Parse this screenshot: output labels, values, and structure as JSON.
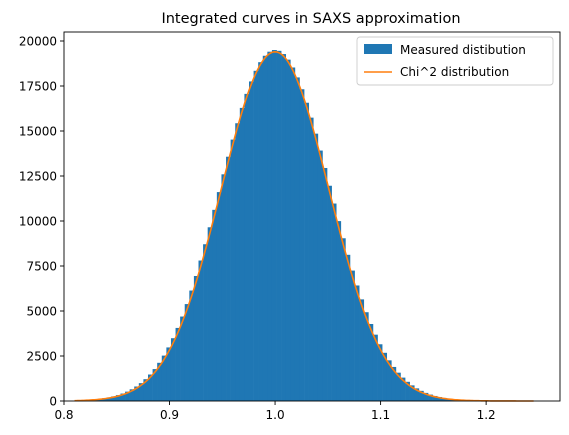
{
  "chart_data": {
    "type": "bar",
    "title": "Integrated curves in SAXS approximation",
    "xlabel": "",
    "ylabel": "",
    "xlim": [
      0.8,
      1.27
    ],
    "ylim": [
      0,
      20500
    ],
    "xticks": [
      0.8,
      0.9,
      1.0,
      1.1,
      1.2
    ],
    "xtick_labels": [
      "0.8",
      "0.9",
      "1.0",
      "1.1",
      "1.2"
    ],
    "yticks": [
      0,
      2500,
      5000,
      7500,
      10000,
      12500,
      15000,
      17500,
      20000
    ],
    "ytick_labels": [
      "0",
      "2500",
      "5000",
      "7500",
      "10000",
      "12500",
      "15000",
      "17500",
      "20000"
    ],
    "grid": false,
    "legend_position": "top-right",
    "histogram": {
      "name": "Measured distibution",
      "color": "#1f77b4",
      "bin_range": [
        0.81,
        1.245
      ],
      "bin_count": 100,
      "center": 1.0,
      "sigma": 0.052,
      "peak": 19500
    },
    "curve": {
      "name": "Chi^2 distribution",
      "color": "#ff7f0e",
      "x_range": [
        0.81,
        1.245
      ],
      "center": 1.0,
      "sigma": 0.051,
      "peak": 19400
    }
  }
}
